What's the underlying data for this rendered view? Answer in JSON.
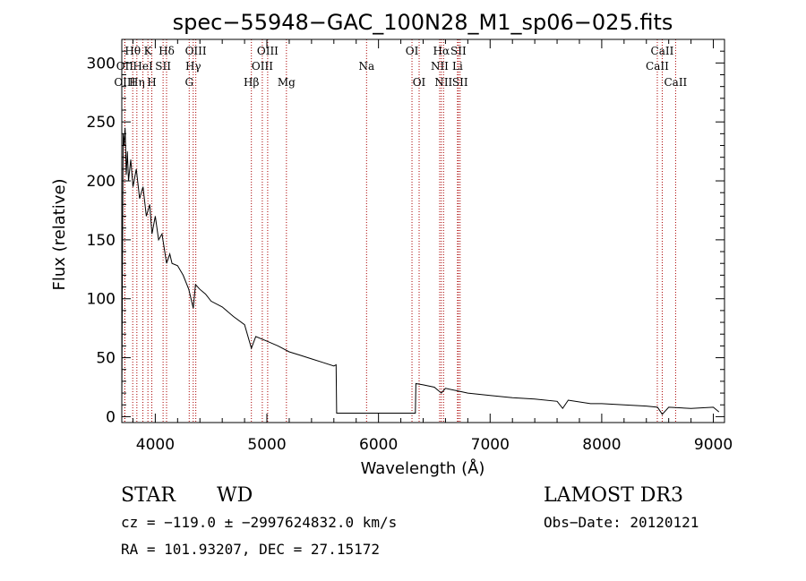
{
  "chart_data": {
    "type": "line",
    "title": "spec−55948−GAC_100N28_M1_sp06−025.fits",
    "xlabel": "Wavelength (Å)",
    "ylabel": "Flux (relative)",
    "xlim": [
      3700,
      9100
    ],
    "ylim": [
      -5,
      320
    ],
    "x_ticks": [
      4000,
      5000,
      6000,
      7000,
      8000,
      9000
    ],
    "y_ticks": [
      0,
      50,
      100,
      150,
      200,
      250,
      300
    ],
    "line_color": "#000000",
    "marker_color": "#aa0000",
    "series": [
      {
        "name": "flux",
        "x": [
          3700,
          3705,
          3712,
          3720,
          3730,
          3740,
          3750,
          3760,
          3780,
          3800,
          3830,
          3860,
          3890,
          3920,
          3950,
          3970,
          4000,
          4030,
          4060,
          4101,
          4130,
          4150,
          4200,
          4250,
          4300,
          4340,
          4360,
          4400,
          4450,
          4500,
          4600,
          4700,
          4800,
          4861,
          4900,
          5000,
          5100,
          5200,
          5300,
          5400,
          5500,
          5600,
          5620,
          5625,
          5650,
          6000,
          6300,
          6330,
          6335,
          6400,
          6500,
          6563,
          6600,
          6700,
          6800,
          7000,
          7200,
          7400,
          7600,
          7650,
          7700,
          7900,
          8000,
          8200,
          8400,
          8500,
          8542,
          8600,
          8800,
          9000,
          9050
        ],
        "y": [
          5,
          112,
          240,
          230,
          245,
          205,
          225,
          200,
          218,
          195,
          210,
          185,
          195,
          170,
          180,
          155,
          170,
          150,
          155,
          130,
          138,
          130,
          128,
          120,
          108,
          92,
          112,
          108,
          104,
          98,
          93,
          85,
          78,
          58,
          68,
          64,
          60,
          55,
          52,
          49,
          46,
          43,
          44,
          3,
          3,
          3,
          3,
          3,
          28,
          27,
          25,
          20,
          24,
          22,
          20,
          18,
          16,
          15,
          13,
          7,
          14,
          11,
          11,
          10,
          9,
          8,
          2,
          8,
          7,
          8,
          4
        ]
      }
    ],
    "lines": [
      {
        "name": "Hθ",
        "wavelength": 3798,
        "row": 1
      },
      {
        "name": "OII",
        "wavelength": 3727,
        "row": 2
      },
      {
        "name": "OIII",
        "wavelength": 3727,
        "row": 3
      },
      {
        "name": "K",
        "wavelength": 3934,
        "row": 1
      },
      {
        "name": "HeI",
        "wavelength": 3889,
        "row": 2
      },
      {
        "name": "Hη",
        "wavelength": 3835,
        "row": 3
      },
      {
        "name": "Hδ",
        "wavelength": 4101,
        "row": 1
      },
      {
        "name": "SII",
        "wavelength": 4070,
        "row": 2
      },
      {
        "name": "H",
        "wavelength": 3969,
        "row": 3
      },
      {
        "name": "OIII",
        "wavelength": 4363,
        "row": 1
      },
      {
        "name": "Hγ",
        "wavelength": 4340,
        "row": 2
      },
      {
        "name": "G",
        "wavelength": 4304,
        "row": 3
      },
      {
        "name": "OIII",
        "wavelength": 5007,
        "row": 1
      },
      {
        "name": "OIII",
        "wavelength": 4959,
        "row": 2
      },
      {
        "name": "Hβ",
        "wavelength": 4861,
        "row": 3
      },
      {
        "name": "Mg",
        "wavelength": 5175,
        "row": 3
      },
      {
        "name": "Na",
        "wavelength": 5893,
        "row": 2
      },
      {
        "name": "OI",
        "wavelength": 6300,
        "row": 1
      },
      {
        "name": "OI",
        "wavelength": 6364,
        "row": 3
      },
      {
        "name": "Hα",
        "wavelength": 6563,
        "row": 1
      },
      {
        "name": "NII",
        "wavelength": 6548,
        "row": 2
      },
      {
        "name": "NII",
        "wavelength": 6583,
        "row": 3
      },
      {
        "name": "SII",
        "wavelength": 6716,
        "row": 1
      },
      {
        "name": "Li",
        "wavelength": 6708,
        "row": 2
      },
      {
        "name": "SII",
        "wavelength": 6731,
        "row": 3
      },
      {
        "name": "CaII",
        "wavelength": 8542,
        "row": 1
      },
      {
        "name": "CaII",
        "wavelength": 8498,
        "row": 2
      },
      {
        "name": "CaII",
        "wavelength": 8662,
        "row": 3
      }
    ]
  },
  "info": {
    "class": "STAR",
    "subclass": "WD",
    "survey": "LAMOST DR3",
    "cz": "cz = −119.0 ± −2997624832.0 km/s",
    "obs_date": "Obs−Date: 20120121",
    "radec": "RA = 101.93207, DEC =  27.15172"
  }
}
